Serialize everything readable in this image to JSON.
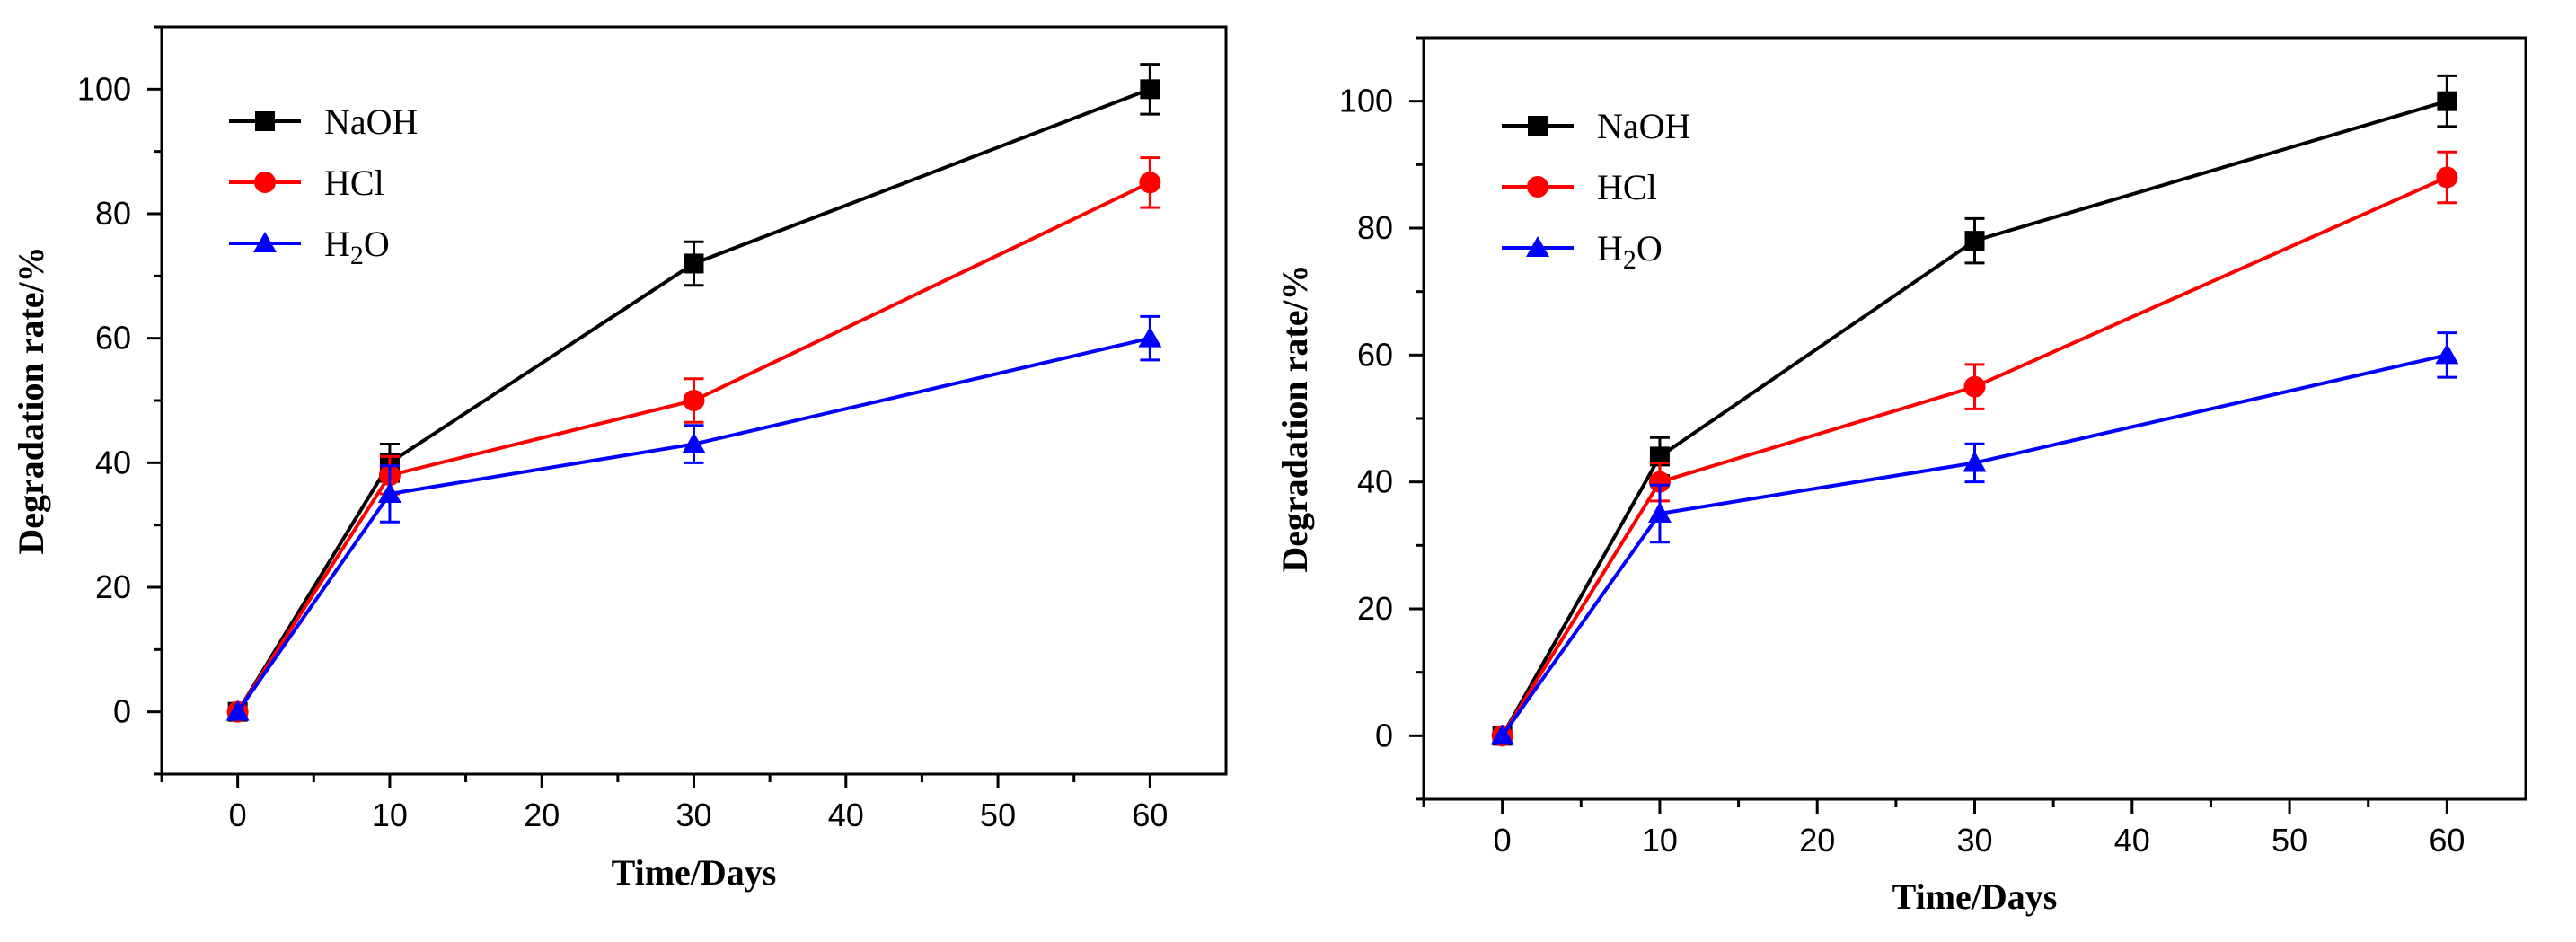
{
  "chart_data": [
    {
      "type": "line",
      "title": "",
      "xlabel": "Time/Days",
      "ylabel": "Degradation rate/%",
      "x": [
        0,
        10,
        30,
        60
      ],
      "xlim": [
        -5,
        65
      ],
      "ylim": [
        -10,
        110
      ],
      "xticks": [
        "0",
        "10",
        "20",
        "30",
        "40",
        "50",
        "60"
      ],
      "yticks": [
        "0",
        "20",
        "40",
        "60",
        "80",
        "100"
      ],
      "grid": false,
      "legend_position": "top-left",
      "series": [
        {
          "name": "NaOH",
          "color": "#000000",
          "marker": "square",
          "values": [
            0,
            40,
            72,
            100
          ],
          "errors": [
            0,
            3,
            3.5,
            4
          ]
        },
        {
          "name": "HCl",
          "color": "#ff0000",
          "marker": "circle",
          "values": [
            0,
            38,
            50,
            85
          ],
          "errors": [
            0,
            3,
            3.5,
            4
          ]
        },
        {
          "name": "H2O",
          "color": "#0000ff",
          "marker": "triangle",
          "values": [
            0,
            35,
            43,
            60
          ],
          "errors": [
            0,
            4.5,
            3,
            3.5
          ]
        }
      ]
    },
    {
      "type": "line",
      "title": "",
      "xlabel": "Time/Days",
      "ylabel": "Degradation rate/%",
      "x": [
        0,
        10,
        30,
        60
      ],
      "xlim": [
        -5,
        65
      ],
      "ylim": [
        -10,
        110
      ],
      "xticks": [
        "0",
        "10",
        "20",
        "30",
        "40",
        "50",
        "60"
      ],
      "yticks": [
        "0",
        "20",
        "40",
        "60",
        "80",
        "100"
      ],
      "grid": false,
      "legend_position": "top-left",
      "series": [
        {
          "name": "NaOH",
          "color": "#000000",
          "marker": "square",
          "values": [
            0,
            44,
            78,
            100
          ],
          "errors": [
            0,
            3,
            3.5,
            4
          ]
        },
        {
          "name": "HCl",
          "color": "#ff0000",
          "marker": "circle",
          "values": [
            0,
            40,
            55,
            88
          ],
          "errors": [
            0,
            3,
            3.5,
            4
          ]
        },
        {
          "name": "H2O",
          "color": "#0000ff",
          "marker": "triangle",
          "values": [
            0,
            35,
            43,
            60
          ],
          "errors": [
            0,
            4.5,
            3,
            3.5
          ]
        }
      ]
    }
  ]
}
